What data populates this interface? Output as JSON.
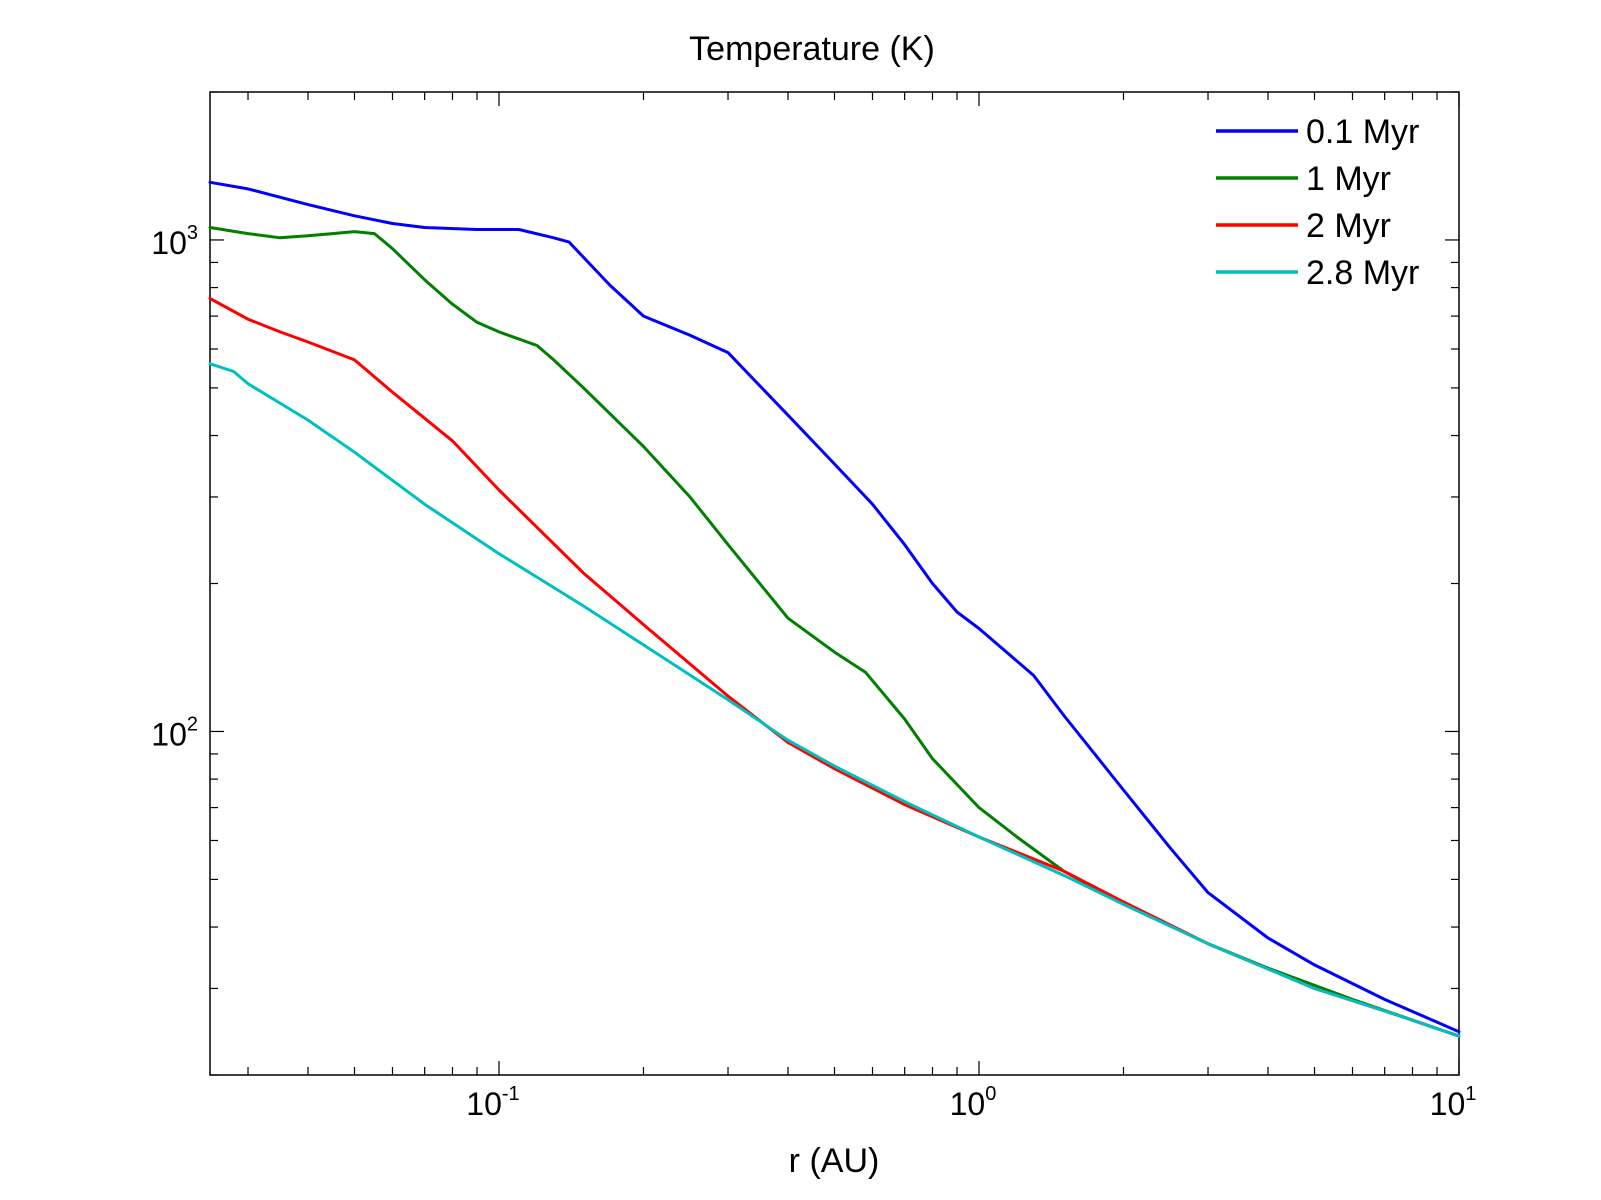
{
  "chart_data": {
    "type": "line",
    "title": "Temperature (K)",
    "xlabel": "r (AU)",
    "ylabel": "",
    "xscale": "log",
    "yscale": "log",
    "xlim": [
      0.025,
      10
    ],
    "ylim": [
      20,
      2000
    ],
    "grid": false,
    "legend_position": "top-right",
    "x_ticks": [
      {
        "value": 0.1,
        "base": "10",
        "exp": "-1"
      },
      {
        "value": 1,
        "base": "10",
        "exp": "0"
      },
      {
        "value": 10,
        "base": "10",
        "exp": "1"
      }
    ],
    "y_ticks": [
      {
        "value": 100,
        "base": "10",
        "exp": "2"
      },
      {
        "value": 1000,
        "base": "10",
        "exp": "3"
      }
    ],
    "series": [
      {
        "name": "0.1 Myr",
        "color": "#0000ff",
        "points": [
          [
            0.025,
            1310
          ],
          [
            0.03,
            1270
          ],
          [
            0.04,
            1180
          ],
          [
            0.05,
            1120
          ],
          [
            0.06,
            1080
          ],
          [
            0.07,
            1060
          ],
          [
            0.09,
            1050
          ],
          [
            0.11,
            1050
          ],
          [
            0.13,
            1010
          ],
          [
            0.14,
            990
          ],
          [
            0.17,
            810
          ],
          [
            0.2,
            700
          ],
          [
            0.25,
            640
          ],
          [
            0.3,
            590
          ],
          [
            0.4,
            440
          ],
          [
            0.45,
            390
          ],
          [
            0.5,
            350
          ],
          [
            0.6,
            290
          ],
          [
            0.7,
            240
          ],
          [
            0.8,
            200
          ],
          [
            0.9,
            175
          ],
          [
            1.0,
            162
          ],
          [
            1.3,
            130
          ],
          [
            1.5,
            108
          ],
          [
            2.0,
            76
          ],
          [
            2.5,
            58
          ],
          [
            3.0,
            47
          ],
          [
            4.0,
            38
          ],
          [
            5.0,
            33.5
          ],
          [
            7.0,
            28.5
          ],
          [
            10,
            24.5
          ]
        ]
      },
      {
        "name": "1 Myr",
        "color": "#007f00",
        "points": [
          [
            0.025,
            1060
          ],
          [
            0.03,
            1030
          ],
          [
            0.035,
            1010
          ],
          [
            0.04,
            1020
          ],
          [
            0.045,
            1030
          ],
          [
            0.05,
            1040
          ],
          [
            0.055,
            1030
          ],
          [
            0.06,
            960
          ],
          [
            0.07,
            830
          ],
          [
            0.08,
            740
          ],
          [
            0.09,
            680
          ],
          [
            0.1,
            650
          ],
          [
            0.12,
            610
          ],
          [
            0.13,
            570
          ],
          [
            0.15,
            500
          ],
          [
            0.2,
            380
          ],
          [
            0.25,
            300
          ],
          [
            0.3,
            240
          ],
          [
            0.4,
            170
          ],
          [
            0.5,
            145
          ],
          [
            0.58,
            132
          ],
          [
            0.7,
            106
          ],
          [
            0.8,
            88
          ],
          [
            1.0,
            70
          ],
          [
            1.2,
            61
          ],
          [
            1.5,
            52
          ],
          [
            2.0,
            44.5
          ],
          [
            3.0,
            37
          ],
          [
            4.0,
            33
          ],
          [
            6.0,
            28.5
          ],
          [
            10,
            24
          ]
        ]
      },
      {
        "name": "2 Myr",
        "color": "#ff0000",
        "points": [
          [
            0.025,
            760
          ],
          [
            0.03,
            690
          ],
          [
            0.035,
            650
          ],
          [
            0.04,
            620
          ],
          [
            0.05,
            570
          ],
          [
            0.06,
            490
          ],
          [
            0.08,
            390
          ],
          [
            0.1,
            310
          ],
          [
            0.15,
            210
          ],
          [
            0.2,
            165
          ],
          [
            0.3,
            118
          ],
          [
            0.4,
            95
          ],
          [
            0.5,
            84
          ],
          [
            0.7,
            71
          ],
          [
            1.0,
            61
          ],
          [
            1.5,
            52
          ],
          [
            2.0,
            45
          ],
          [
            3.0,
            37
          ],
          [
            5.0,
            30
          ],
          [
            7.0,
            27
          ],
          [
            10,
            24
          ]
        ]
      },
      {
        "name": "2.8 Myr",
        "color": "#00bfbf",
        "points": [
          [
            0.025,
            560
          ],
          [
            0.028,
            540
          ],
          [
            0.03,
            510
          ],
          [
            0.04,
            430
          ],
          [
            0.05,
            370
          ],
          [
            0.07,
            290
          ],
          [
            0.1,
            230
          ],
          [
            0.15,
            180
          ],
          [
            0.2,
            150
          ],
          [
            0.3,
            116
          ],
          [
            0.4,
            96
          ],
          [
            0.5,
            85
          ],
          [
            0.7,
            72
          ],
          [
            1.0,
            61
          ],
          [
            1.5,
            51
          ],
          [
            2.0,
            44.5
          ],
          [
            3.0,
            37
          ],
          [
            5.0,
            30
          ],
          [
            7.0,
            27
          ],
          [
            10,
            24
          ]
        ]
      }
    ]
  }
}
